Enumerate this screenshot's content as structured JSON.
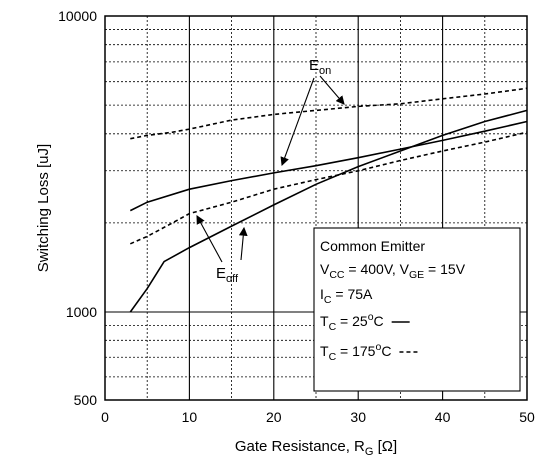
{
  "chart_data": {
    "type": "line",
    "xlabel": "Gate Resistance, R",
    "xlabel_sub": "G",
    "xlabel_unit": " [Ω]",
    "ylabel": "Switching Loss [uJ]",
    "xlim": [
      0,
      50
    ],
    "ylim": [
      500,
      10000
    ],
    "y_scale": "log",
    "x_ticks": [
      0,
      10,
      20,
      30,
      40,
      50
    ],
    "y_ticks": [
      {
        "value": 500,
        "label": "500"
      },
      {
        "value": 1000,
        "label": "1000"
      },
      {
        "value": 10000,
        "label": "10000"
      }
    ],
    "grid": true,
    "series": [
      {
        "id": "eon_25",
        "style": "solid",
        "x": [
          3,
          5,
          10,
          15,
          20,
          25,
          30,
          35,
          40,
          45,
          50
        ],
        "y": [
          2200,
          2350,
          2600,
          2780,
          2950,
          3120,
          3320,
          3550,
          3800,
          4080,
          4400
        ]
      },
      {
        "id": "eoff_25",
        "style": "solid",
        "x": [
          3,
          5,
          7,
          10,
          15,
          20,
          25,
          30,
          35,
          40,
          45,
          50
        ],
        "y": [
          1000,
          1200,
          1480,
          1650,
          1950,
          2300,
          2700,
          3100,
          3500,
          3950,
          4400,
          4800
        ]
      },
      {
        "id": "eon_175",
        "style": "dashed",
        "x": [
          3,
          5,
          8,
          10,
          15,
          20,
          25,
          30,
          35,
          40,
          45,
          50
        ],
        "y": [
          3850,
          3950,
          4050,
          4150,
          4450,
          4650,
          4800,
          4950,
          5050,
          5250,
          5450,
          5700
        ]
      },
      {
        "id": "eoff_175",
        "style": "dashed",
        "x": [
          3,
          5,
          8,
          10,
          15,
          20,
          25,
          30,
          35,
          40,
          45,
          50
        ],
        "y": [
          1700,
          1800,
          2000,
          2150,
          2350,
          2600,
          2800,
          3000,
          3250,
          3500,
          3750,
          4050
        ]
      }
    ],
    "annotations": {
      "eon": {
        "main": "E",
        "sub": "on"
      },
      "eoff": {
        "main": "E",
        "sub": "off"
      }
    },
    "legend": {
      "placement": "bottom-right",
      "lines": [
        {
          "text": "Common Emitter"
        },
        {
          "parts": [
            [
              "V",
              ""
            ],
            [
              "CC",
              "sub"
            ],
            [
              " = 400V, V",
              ""
            ],
            [
              "GE",
              "sub"
            ],
            [
              " = 15V",
              ""
            ]
          ]
        },
        {
          "parts": [
            [
              "I",
              ""
            ],
            [
              "C",
              "sub"
            ],
            [
              " = 75A",
              ""
            ]
          ]
        },
        {
          "parts": [
            [
              "T",
              ""
            ],
            [
              "C",
              "sub"
            ],
            [
              " = 25",
              ""
            ],
            [
              "o",
              "sup"
            ],
            [
              "C",
              ""
            ]
          ],
          "line_style": "solid"
        },
        {
          "parts": [
            [
              "T",
              ""
            ],
            [
              "C",
              "sub"
            ],
            [
              " = 175",
              ""
            ],
            [
              "o",
              "sup"
            ],
            [
              "C",
              ""
            ]
          ],
          "line_style": "dashed"
        }
      ]
    }
  }
}
